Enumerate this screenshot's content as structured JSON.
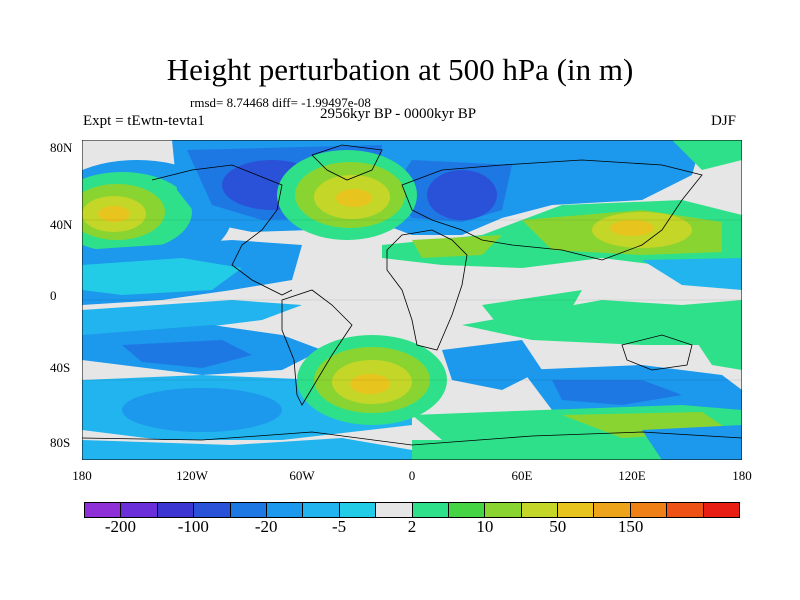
{
  "header": {
    "title": "Height perturbation at 500 hPa (in m)",
    "stats": "rmsd= 8.74468  diff= -1.99497e-08",
    "experiment": "Expt = tEwtn-tevta1",
    "period": "2956kyr BP - 0000kyr BP",
    "season": "DJF"
  },
  "axes": {
    "lat_labels": [
      "80N",
      "40N",
      "0",
      "40S",
      "80S"
    ],
    "lon_labels": [
      "180",
      "120W",
      "60W",
      "0",
      "60E",
      "120E",
      "180"
    ]
  },
  "colorbar": {
    "colors": [
      "#8f2fd8",
      "#6a2fd8",
      "#3d35d2",
      "#2a52d8",
      "#1e78e4",
      "#1c98ec",
      "#22b4ee",
      "#22cce6",
      "#e6e6e6",
      "#2ee08a",
      "#44d444",
      "#8ad432",
      "#c4d628",
      "#e8c41e",
      "#eda41a",
      "#ee8016",
      "#ee5214",
      "#e81e14"
    ],
    "labels": [
      "-200",
      "-100",
      "-20",
      "-5",
      "2",
      "10",
      "50",
      "150"
    ]
  }
}
